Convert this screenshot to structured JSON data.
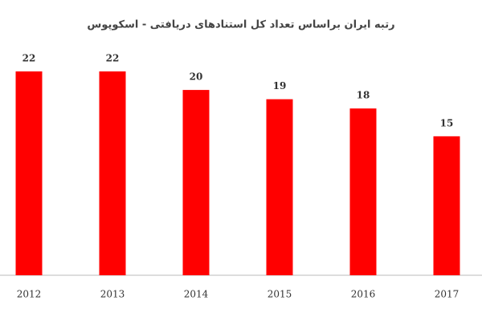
{
  "chart_data": {
    "type": "bar",
    "title": "رتبه ایران براساس تعداد کل استنادهای دریافتی - اسکوپوس",
    "categories": [
      "2012",
      "2013",
      "2014",
      "2015",
      "2016",
      "2017"
    ],
    "values": [
      22,
      22,
      20,
      19,
      18,
      15
    ],
    "color": "#ff0000"
  }
}
